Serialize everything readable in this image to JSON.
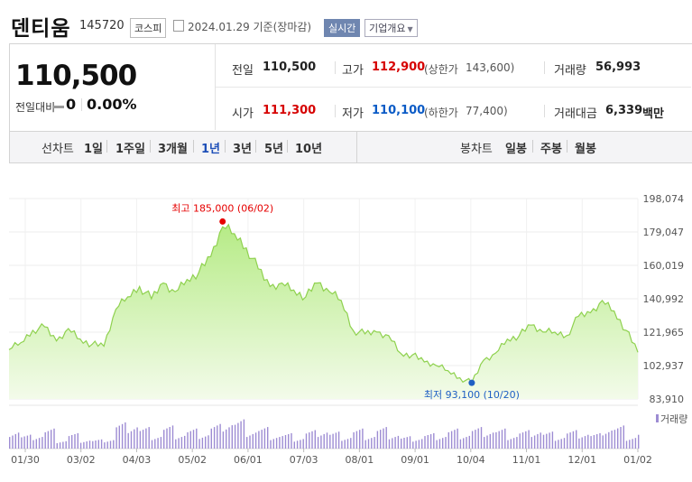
{
  "header": {
    "title": "덴티움",
    "code": "145720",
    "market": "코스피",
    "date": "2024.01.29 기준(장마감)",
    "realtime_label": "실시간",
    "corp_label": "기업개요"
  },
  "price": {
    "current": "110,500",
    "change_label": "전일대비",
    "change_value": "0",
    "change_pct": "0.00%"
  },
  "stats": {
    "prev_close_label": "전일",
    "prev_close": "110,500",
    "high_label": "고가",
    "high": "112,900",
    "upper_limit_label": "(상한가",
    "upper_limit": "143,600)",
    "volume_label": "거래량",
    "volume": "56,993",
    "open_label": "시가",
    "open": "111,300",
    "low_label": "저가",
    "low": "110,100",
    "lower_limit_label": "(하한가",
    "lower_limit": "77,400)",
    "amount_label": "거래대금",
    "amount": "6,339",
    "amount_unit": "백만"
  },
  "periods": {
    "line_label": "선차트",
    "line_items": [
      "1일",
      "1주일",
      "3개월",
      "1년",
      "3년",
      "5년",
      "10년"
    ],
    "selected": "1년",
    "candle_label": "봉차트",
    "candle_items": [
      "일봉",
      "주봉",
      "월봉"
    ]
  },
  "colors": {
    "line": "#8fd14f",
    "area_top": "#b6eb86",
    "area_bottom": "#f3fbea",
    "volume": "#9d8cd3",
    "high_marker": "#e60000",
    "low_marker": "#1f5fc4"
  },
  "chart_data": {
    "type": "area",
    "ylim": [
      83910,
      198074
    ],
    "yticks": [
      "198,074",
      "179,047",
      "160,019",
      "140,992",
      "121,965",
      "102,937",
      "83,910"
    ],
    "xticks": [
      "01/30",
      "03/02",
      "04/03",
      "05/02",
      "06/01",
      "07/03",
      "08/01",
      "09/01",
      "10/04",
      "11/01",
      "12/01",
      "01/02"
    ],
    "annotation_high": "최고 185,000 (06/02)",
    "annotation_low": "최저 93,100 (10/20)",
    "volume_label": "거래량",
    "x": [
      "01/30",
      "02/06",
      "02/13",
      "02/20",
      "02/27",
      "03/06",
      "03/13",
      "03/20",
      "03/27",
      "04/03",
      "04/10",
      "04/17",
      "04/24",
      "05/01",
      "05/08",
      "05/15",
      "05/22",
      "05/29",
      "06/02",
      "06/05",
      "06/12",
      "06/19",
      "06/26",
      "07/03",
      "07/10",
      "07/17",
      "07/24",
      "07/31",
      "08/07",
      "08/14",
      "08/21",
      "08/28",
      "09/04",
      "09/11",
      "09/18",
      "09/25",
      "10/02",
      "10/09",
      "10/16",
      "10/20",
      "10/27",
      "11/03",
      "11/10",
      "11/17",
      "11/24",
      "12/01",
      "12/08",
      "12/15",
      "12/22",
      "12/29",
      "01/05",
      "01/12",
      "01/19",
      "01/29"
    ],
    "values": [
      112000,
      116000,
      123000,
      125000,
      117000,
      124000,
      118000,
      115000,
      114000,
      135000,
      142000,
      148000,
      141000,
      150000,
      145000,
      152000,
      156000,
      165000,
      182000,
      178000,
      170000,
      158000,
      148000,
      150000,
      146000,
      142000,
      150000,
      145000,
      140000,
      123000,
      121000,
      122000,
      120000,
      110000,
      109000,
      105000,
      103000,
      100000,
      96000,
      93100,
      106000,
      110000,
      118000,
      120000,
      126000,
      122000,
      122000,
      120000,
      131000,
      133000,
      140000,
      134000,
      123000,
      110500
    ],
    "volumes": [
      30,
      18,
      22,
      26,
      14,
      20,
      15,
      12,
      16,
      34,
      40,
      28,
      22,
      30,
      24,
      26,
      25,
      32,
      44,
      38,
      30,
      28,
      22,
      20,
      18,
      24,
      30,
      22,
      20,
      26,
      22,
      28,
      24,
      16,
      18,
      20,
      22,
      26,
      24,
      28,
      30,
      26,
      22,
      24,
      30,
      22,
      20,
      24,
      26,
      20,
      34,
      30,
      20,
      22
    ]
  }
}
